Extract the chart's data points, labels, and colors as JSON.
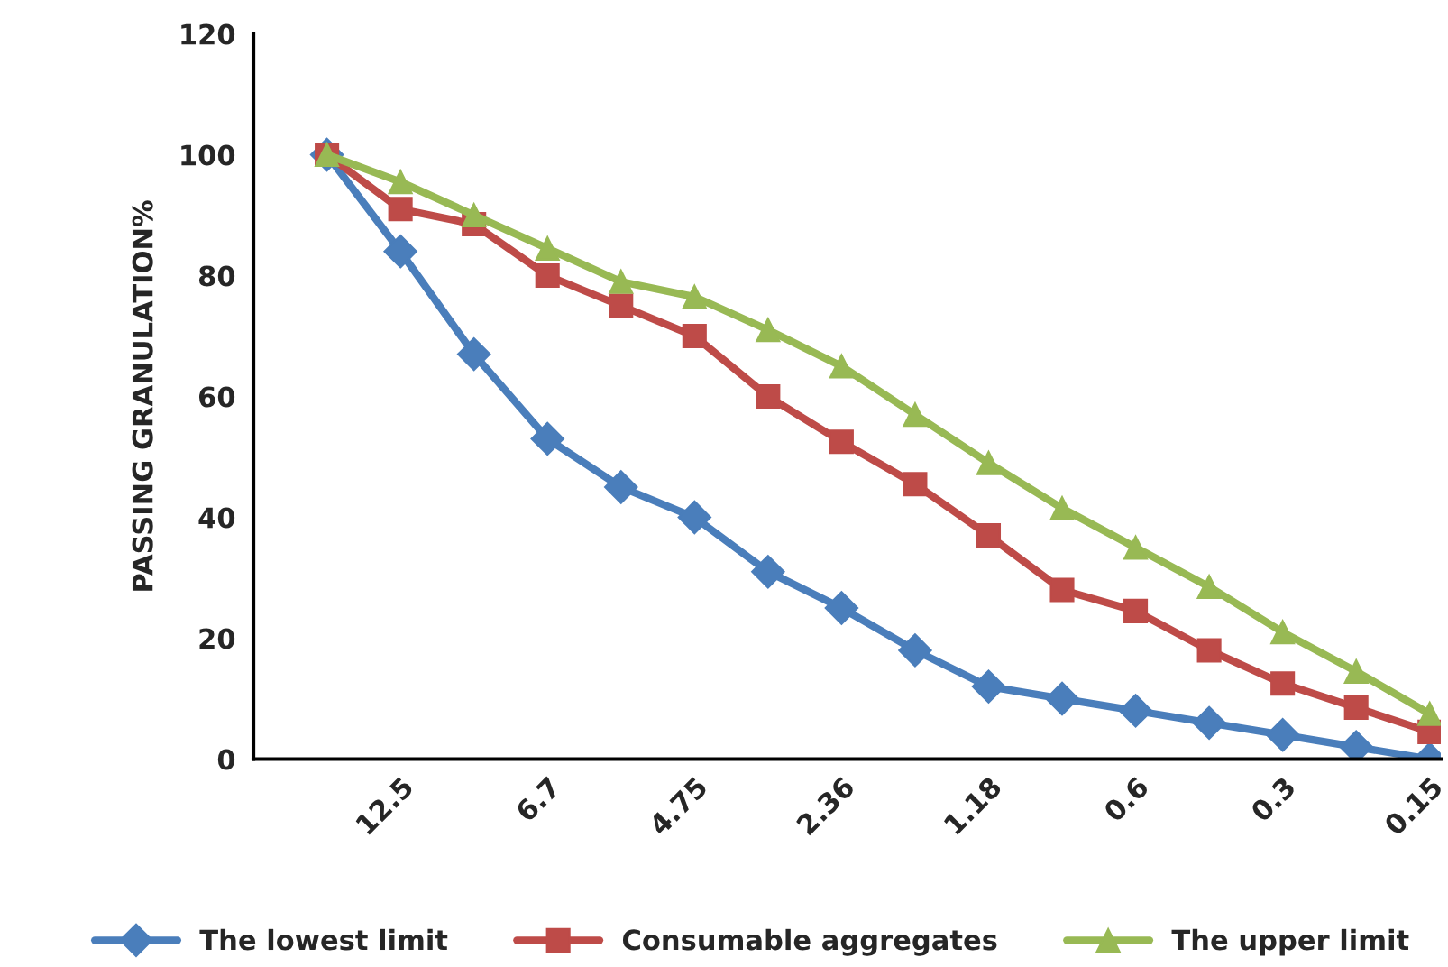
{
  "chart_data": {
    "type": "line",
    "ylabel": "PASSING GRANULATION%",
    "categories": [
      null,
      "12.5",
      null,
      "6.7",
      null,
      "4.75",
      null,
      "2.36",
      null,
      "1.18",
      null,
      "0.6",
      null,
      "0.3",
      null,
      "0.15"
    ],
    "series": [
      {
        "name": "The lowest limit",
        "color": "#4a7ebb",
        "marker": "diamond",
        "values": [
          100,
          84,
          67,
          53,
          45,
          40,
          31,
          25,
          18,
          12,
          10,
          8,
          6,
          4,
          2,
          0
        ]
      },
      {
        "name": "Consumable aggregates",
        "color": "#be4b48",
        "marker": "square",
        "values": [
          100,
          91,
          88.5,
          80,
          75,
          70,
          60,
          52.5,
          45.5,
          37,
          28,
          24.5,
          18,
          12.5,
          8.5,
          4.5
        ]
      },
      {
        "name": "The upper limit",
        "color": "#98b954",
        "marker": "triangle",
        "values": [
          100,
          95.5,
          90,
          84.5,
          79,
          76.5,
          71,
          65,
          57,
          49,
          41.5,
          35,
          28.5,
          21,
          14.5,
          7.5
        ]
      }
    ],
    "ylim": [
      0,
      120
    ],
    "yticks": [
      0,
      20,
      40,
      60,
      80,
      100,
      120
    ],
    "grid": false,
    "legend": "bottom",
    "line_style": "solid"
  }
}
